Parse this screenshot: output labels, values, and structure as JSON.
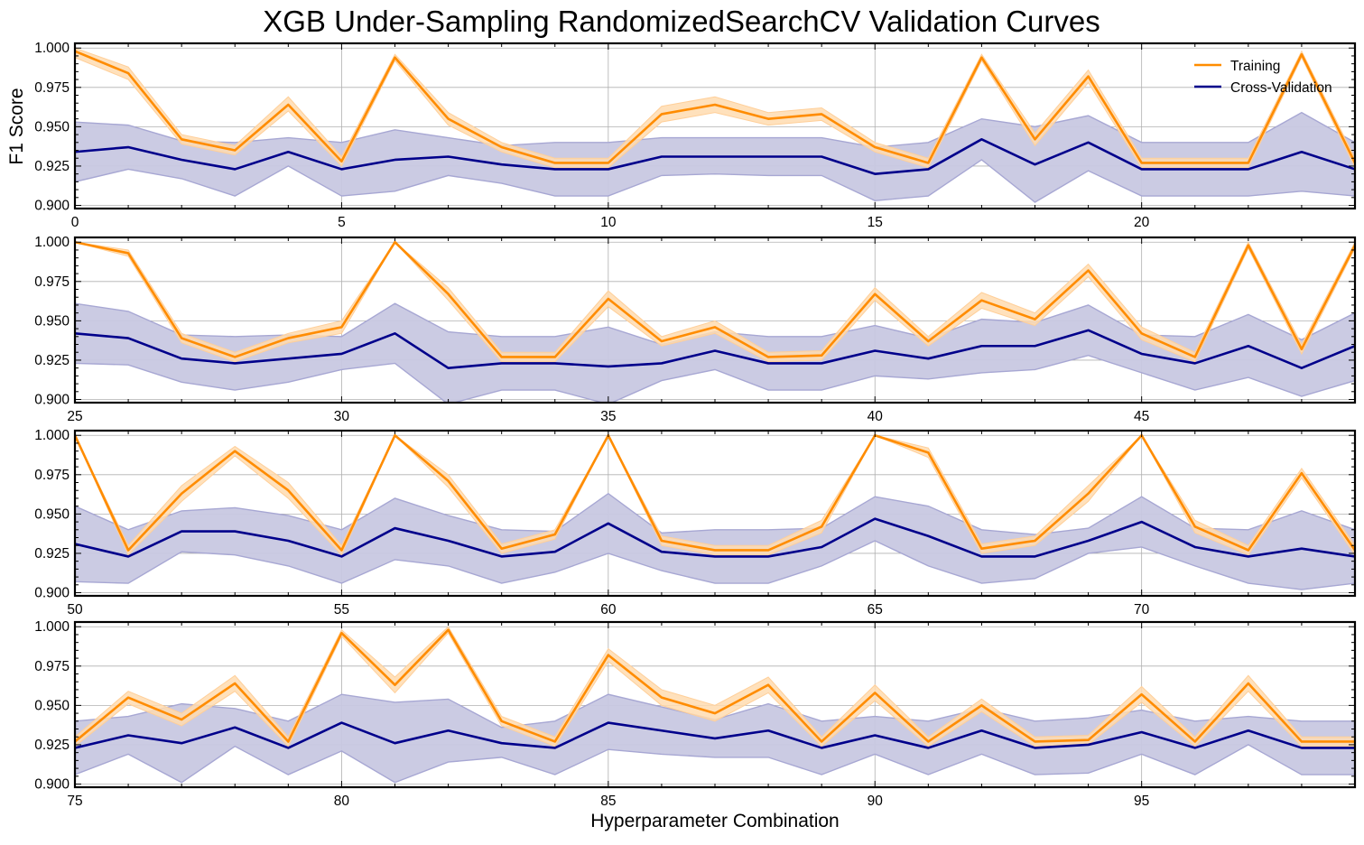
{
  "chart_data": {
    "type": "line",
    "title": "XGB Under-Sampling RandomizedSearchCV Validation Curves",
    "ylabel": "F1 Score",
    "xlabel": "Hyperparameter Combination",
    "grid": true,
    "legend_placement": "top-right",
    "ylim": [
      0.898,
      1.003
    ],
    "y_ticks": [
      "0.900",
      "0.925",
      "0.950",
      "0.975",
      "1.000"
    ],
    "y_tick_values": [
      0.9,
      0.925,
      0.95,
      0.975,
      1.0
    ],
    "colors": {
      "training": "#ff8c00",
      "training_band": "#ffdcb0",
      "cv": "#00008b",
      "cv_band": "#c8c8e2",
      "cv_band_edge": "#a7a7d3",
      "grid": "#b0b0b0"
    },
    "series": [
      {
        "name": "Training",
        "values": [
          0.998,
          0.984,
          0.942,
          0.935,
          0.964,
          0.928,
          0.994,
          0.955,
          0.937,
          0.927,
          0.927,
          0.958,
          0.964,
          0.955,
          0.958,
          0.937,
          0.927,
          0.994,
          0.942,
          0.982,
          0.927,
          0.927,
          0.927,
          0.996,
          0.927,
          1.0,
          0.993,
          0.939,
          0.927,
          0.939,
          0.946,
          1.0,
          0.967,
          0.927,
          0.927,
          0.964,
          0.937,
          0.946,
          0.927,
          0.928,
          0.967,
          0.937,
          0.963,
          0.951,
          0.982,
          0.942,
          0.927,
          0.998,
          0.932,
          0.998,
          1.0,
          0.927,
          0.963,
          0.99,
          0.965,
          0.927,
          1.0,
          0.971,
          0.928,
          0.937,
          1.0,
          0.933,
          0.927,
          0.927,
          0.942,
          1.0,
          0.989,
          0.928,
          0.933,
          0.963,
          1.0,
          0.942,
          0.927,
          0.976,
          0.927,
          0.927,
          0.955,
          0.941,
          0.964,
          0.927,
          0.996,
          0.963,
          0.998,
          0.94,
          0.927,
          0.982,
          0.955,
          0.945,
          0.963,
          0.927,
          0.958,
          0.927,
          0.95,
          0.927,
          0.928,
          0.957,
          0.927,
          0.964,
          0.927,
          0.927
        ],
        "lower": [
          0.994,
          0.98,
          0.939,
          0.932,
          0.96,
          0.925,
          0.992,
          0.951,
          0.934,
          0.924,
          0.924,
          0.953,
          0.959,
          0.951,
          0.954,
          0.934,
          0.924,
          0.992,
          0.938,
          0.978,
          0.924,
          0.924,
          0.924,
          0.994,
          0.924,
          1.0,
          0.991,
          0.936,
          0.924,
          0.936,
          0.942,
          1.0,
          0.963,
          0.924,
          0.924,
          0.959,
          0.934,
          0.942,
          0.924,
          0.925,
          0.963,
          0.934,
          0.958,
          0.947,
          0.978,
          0.938,
          0.924,
          0.996,
          0.929,
          0.996,
          1.0,
          0.924,
          0.958,
          0.987,
          0.96,
          0.924,
          1.0,
          0.967,
          0.925,
          0.934,
          1.0,
          0.93,
          0.924,
          0.924,
          0.938,
          1.0,
          0.986,
          0.925,
          0.93,
          0.958,
          1.0,
          0.938,
          0.924,
          0.973,
          0.924,
          0.924,
          0.951,
          0.937,
          0.959,
          0.924,
          0.994,
          0.958,
          0.996,
          0.937,
          0.924,
          0.978,
          0.95,
          0.94,
          0.958,
          0.924,
          0.953,
          0.924,
          0.946,
          0.924,
          0.925,
          0.952,
          0.924,
          0.959,
          0.924,
          0.924
        ],
        "upper": [
          1.0,
          0.988,
          0.945,
          0.938,
          0.969,
          0.931,
          0.996,
          0.959,
          0.94,
          0.93,
          0.93,
          0.963,
          0.969,
          0.959,
          0.962,
          0.94,
          0.93,
          0.996,
          0.946,
          0.986,
          0.93,
          0.93,
          0.93,
          0.998,
          0.93,
          1.0,
          0.995,
          0.942,
          0.93,
          0.942,
          0.95,
          1.0,
          0.971,
          0.93,
          0.93,
          0.969,
          0.94,
          0.95,
          0.93,
          0.931,
          0.971,
          0.94,
          0.968,
          0.955,
          0.986,
          0.946,
          0.93,
          1.0,
          0.935,
          1.0,
          1.0,
          0.93,
          0.968,
          0.993,
          0.97,
          0.93,
          1.0,
          0.975,
          0.931,
          0.94,
          1.0,
          0.936,
          0.93,
          0.93,
          0.946,
          1.0,
          0.992,
          0.931,
          0.936,
          0.968,
          1.0,
          0.946,
          0.93,
          0.979,
          0.93,
          0.93,
          0.959,
          0.945,
          0.969,
          0.93,
          0.998,
          0.968,
          1.0,
          0.943,
          0.93,
          0.986,
          0.96,
          0.95,
          0.968,
          0.93,
          0.963,
          0.93,
          0.954,
          0.93,
          0.931,
          0.962,
          0.93,
          0.969,
          0.93,
          0.93
        ]
      },
      {
        "name": "Cross-Validation",
        "values": [
          0.934,
          0.937,
          0.929,
          0.923,
          0.934,
          0.923,
          0.929,
          0.931,
          0.926,
          0.923,
          0.923,
          0.931,
          0.931,
          0.931,
          0.931,
          0.92,
          0.923,
          0.942,
          0.926,
          0.94,
          0.923,
          0.923,
          0.923,
          0.934,
          0.923,
          0.942,
          0.939,
          0.926,
          0.923,
          0.926,
          0.929,
          0.942,
          0.92,
          0.923,
          0.923,
          0.921,
          0.923,
          0.931,
          0.923,
          0.923,
          0.931,
          0.926,
          0.934,
          0.934,
          0.944,
          0.929,
          0.923,
          0.934,
          0.92,
          0.934,
          0.931,
          0.923,
          0.939,
          0.939,
          0.933,
          0.923,
          0.941,
          0.933,
          0.923,
          0.926,
          0.944,
          0.926,
          0.923,
          0.923,
          0.929,
          0.947,
          0.936,
          0.923,
          0.923,
          0.933,
          0.945,
          0.929,
          0.923,
          0.928,
          0.923,
          0.923,
          0.931,
          0.926,
          0.936,
          0.923,
          0.939,
          0.926,
          0.934,
          0.926,
          0.923,
          0.939,
          0.934,
          0.929,
          0.934,
          0.923,
          0.931,
          0.923,
          0.934,
          0.923,
          0.925,
          0.933,
          0.923,
          0.934,
          0.923,
          0.923
        ],
        "lower": [
          0.915,
          0.923,
          0.917,
          0.906,
          0.925,
          0.906,
          0.909,
          0.919,
          0.914,
          0.906,
          0.906,
          0.919,
          0.92,
          0.919,
          0.919,
          0.903,
          0.906,
          0.929,
          0.902,
          0.922,
          0.906,
          0.906,
          0.906,
          0.909,
          0.906,
          0.923,
          0.922,
          0.911,
          0.906,
          0.911,
          0.919,
          0.923,
          0.897,
          0.906,
          0.906,
          0.897,
          0.912,
          0.919,
          0.906,
          0.906,
          0.915,
          0.913,
          0.917,
          0.919,
          0.928,
          0.917,
          0.906,
          0.914,
          0.902,
          0.912,
          0.907,
          0.906,
          0.926,
          0.924,
          0.917,
          0.906,
          0.921,
          0.917,
          0.906,
          0.913,
          0.925,
          0.914,
          0.906,
          0.906,
          0.917,
          0.933,
          0.917,
          0.906,
          0.909,
          0.925,
          0.929,
          0.917,
          0.906,
          0.902,
          0.906,
          0.906,
          0.919,
          0.901,
          0.924,
          0.906,
          0.921,
          0.901,
          0.914,
          0.917,
          0.906,
          0.922,
          0.919,
          0.917,
          0.917,
          0.906,
          0.919,
          0.906,
          0.919,
          0.906,
          0.907,
          0.919,
          0.906,
          0.925,
          0.906,
          0.906
        ],
        "upper": [
          0.953,
          0.951,
          0.941,
          0.94,
          0.943,
          0.94,
          0.948,
          0.943,
          0.938,
          0.94,
          0.94,
          0.943,
          0.943,
          0.943,
          0.943,
          0.937,
          0.94,
          0.955,
          0.95,
          0.957,
          0.94,
          0.94,
          0.94,
          0.959,
          0.94,
          0.961,
          0.956,
          0.941,
          0.94,
          0.941,
          0.94,
          0.961,
          0.943,
          0.94,
          0.94,
          0.946,
          0.935,
          0.943,
          0.94,
          0.94,
          0.947,
          0.939,
          0.951,
          0.949,
          0.96,
          0.941,
          0.94,
          0.954,
          0.938,
          0.955,
          0.955,
          0.94,
          0.952,
          0.954,
          0.949,
          0.94,
          0.96,
          0.949,
          0.94,
          0.939,
          0.963,
          0.938,
          0.94,
          0.94,
          0.941,
          0.961,
          0.955,
          0.94,
          0.937,
          0.941,
          0.961,
          0.941,
          0.94,
          0.952,
          0.94,
          0.94,
          0.943,
          0.951,
          0.948,
          0.94,
          0.957,
          0.952,
          0.954,
          0.936,
          0.94,
          0.957,
          0.949,
          0.941,
          0.951,
          0.94,
          0.943,
          0.94,
          0.948,
          0.94,
          0.942,
          0.947,
          0.94,
          0.943,
          0.94,
          0.94
        ]
      }
    ],
    "panels": [
      {
        "x_start": 0,
        "x_end": 24,
        "x_ticks": [
          "0",
          "5",
          "10",
          "15",
          "20"
        ],
        "x_tick_values": [
          0,
          5,
          10,
          15,
          20
        ]
      },
      {
        "x_start": 25,
        "x_end": 49,
        "x_ticks": [
          "25",
          "30",
          "35",
          "40",
          "45"
        ],
        "x_tick_values": [
          25,
          30,
          35,
          40,
          45
        ]
      },
      {
        "x_start": 50,
        "x_end": 74,
        "x_ticks": [
          "50",
          "55",
          "60",
          "65",
          "70"
        ],
        "x_tick_values": [
          50,
          55,
          60,
          65,
          70
        ]
      },
      {
        "x_start": 75,
        "x_end": 99,
        "x_ticks": [
          "75",
          "80",
          "85",
          "90",
          "95"
        ],
        "x_tick_values": [
          75,
          80,
          85,
          90,
          95
        ]
      }
    ]
  }
}
